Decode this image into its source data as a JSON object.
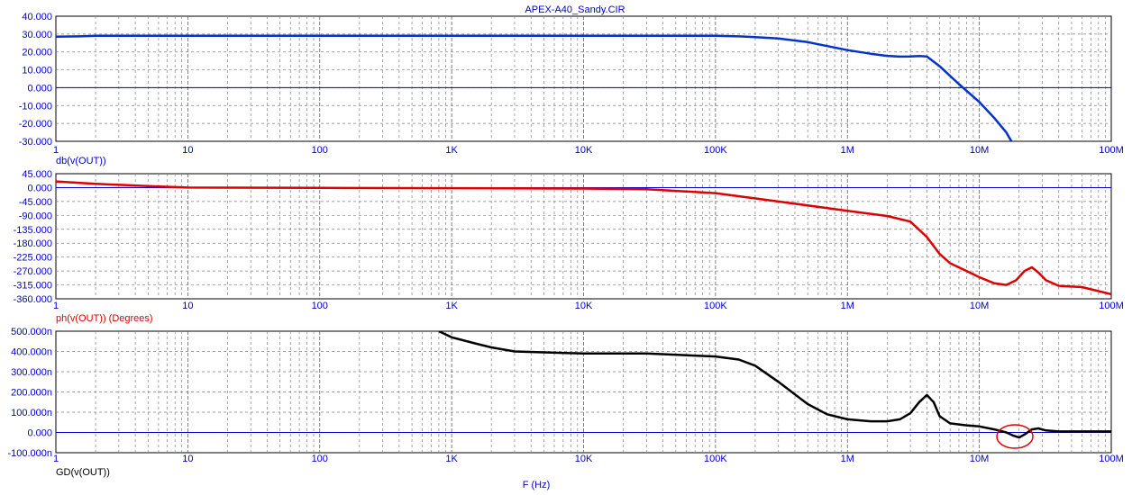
{
  "title": "APEX-A40_Sandy.CIR",
  "xlabel": "F (Hz)",
  "marker_color": "#e00000",
  "chart_data": [
    {
      "type": "line",
      "name": "magnitude",
      "ylabel": "db(v(OUT))",
      "x_scale": "log",
      "xlim": [
        1,
        100000000
      ],
      "ylim": [
        -30,
        40
      ],
      "grid": true,
      "zero_line": true,
      "color": "#0033cc",
      "label_color": "#0000cc",
      "x_ticks": [
        "1",
        "10",
        "100",
        "1K",
        "10K",
        "100K",
        "1M",
        "10M",
        "100M"
      ],
      "y_ticks": [
        "40.000",
        "30.000",
        "20.000",
        "10.000",
        "0.000",
        "-10.000",
        "-20.000",
        "-30.000"
      ],
      "y_tick_values": [
        40,
        30,
        20,
        10,
        0,
        -10,
        -20,
        -30
      ],
      "series": [
        {
          "x": [
            1,
            1.5,
            2,
            5,
            10,
            100,
            1000,
            10000,
            100000,
            150000,
            200000,
            300000,
            500000,
            1000000,
            1500000,
            2000000,
            2500000,
            3000000,
            3500000,
            4000000,
            5000000,
            7000000,
            10000000,
            13000000,
            16000000,
            17500000
          ],
          "y": [
            28.5,
            28.7,
            29,
            29,
            29,
            29,
            29,
            29,
            29,
            28.7,
            28.3,
            27.5,
            25.5,
            21,
            19,
            17.8,
            17.4,
            17.5,
            17.7,
            17.5,
            12,
            2,
            -8,
            -17,
            -25,
            -30
          ]
        }
      ]
    },
    {
      "type": "line",
      "name": "phase",
      "ylabel": "ph(v(OUT)) (Degrees)",
      "x_scale": "log",
      "xlim": [
        1,
        100000000
      ],
      "ylim": [
        -360,
        45
      ],
      "grid": true,
      "zero_line": true,
      "color": "#dd0000",
      "label_color": "#dd0000",
      "x_ticks": [
        "1",
        "10",
        "100",
        "1K",
        "10K",
        "100K",
        "1M",
        "10M",
        "100M"
      ],
      "y_ticks": [
        "45.000",
        "0.000",
        "-45.000",
        "-90.000",
        "-135.000",
        "-180.000",
        "-225.000",
        "-270.000",
        "-315.000",
        "-360.000"
      ],
      "y_tick_values": [
        45,
        0,
        -45,
        -90,
        -135,
        -180,
        -225,
        -270,
        -315,
        -360
      ],
      "series": [
        {
          "x": [
            1,
            2,
            5,
            10,
            100,
            1000,
            10000,
            30000,
            100000,
            300000,
            1000000,
            2000000,
            3000000,
            4000000,
            5000000,
            6000000,
            8000000,
            10000000,
            13000000,
            16000000,
            19000000,
            22000000,
            25000000,
            28000000,
            32000000,
            40000000,
            60000000,
            100000000
          ],
          "y": [
            20,
            12,
            5,
            0,
            -1,
            -2,
            -3,
            -5,
            -18,
            -45,
            -75,
            -92,
            -110,
            -160,
            -215,
            -245,
            -270,
            -290,
            -310,
            -315,
            -300,
            -270,
            -258,
            -275,
            -300,
            -318,
            -322,
            -345
          ]
        }
      ]
    },
    {
      "type": "line",
      "name": "group-delay",
      "ylabel": "GD(v(OUT))",
      "x_scale": "log",
      "xlim": [
        1,
        100000000
      ],
      "ylim": [
        -100,
        500
      ],
      "grid": true,
      "zero_line": true,
      "color": "#000000",
      "label_color": "#000000",
      "x_ticks": [
        "1",
        "10",
        "100",
        "1K",
        "10K",
        "100K",
        "1M",
        "10M",
        "100M"
      ],
      "y_ticks": [
        "500.000n",
        "400.000n",
        "300.000n",
        "200.000n",
        "100.000n",
        "0.000",
        "-100.000n"
      ],
      "y_tick_values": [
        500,
        400,
        300,
        200,
        100,
        0,
        -100
      ],
      "series": [
        {
          "x": [
            800,
            1000,
            1500,
            2000,
            3000,
            10000,
            30000,
            100000,
            150000,
            200000,
            300000,
            500000,
            700000,
            1000000,
            1500000,
            2000000,
            2500000,
            3000000,
            3500000,
            4000000,
            4500000,
            5000000,
            6000000,
            8000000,
            10000000,
            13000000,
            16000000,
            18000000,
            20000000,
            22000000,
            25000000,
            28000000,
            32000000,
            40000000,
            100000000
          ],
          "y": [
            500,
            470,
            440,
            420,
            400,
            390,
            390,
            375,
            360,
            330,
            250,
            140,
            90,
            65,
            55,
            55,
            65,
            95,
            150,
            185,
            150,
            80,
            45,
            35,
            30,
            15,
            0,
            -15,
            -25,
            -10,
            15,
            20,
            10,
            5,
            5
          ]
        }
      ]
    }
  ]
}
